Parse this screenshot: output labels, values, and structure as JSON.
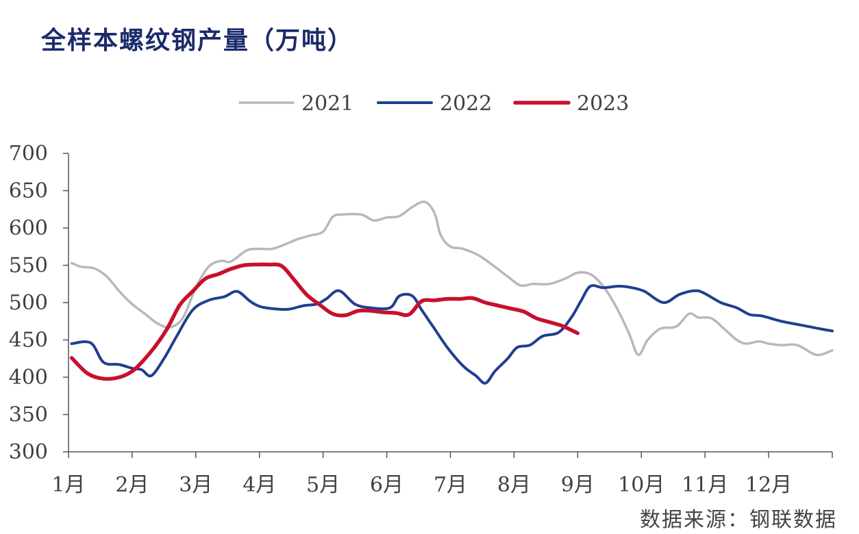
{
  "title": "全样本螺纹钢产量（万吨）",
  "source": "数据来源：钢联数据",
  "colors": {
    "2021": "#b8b8b8",
    "2022": "#1f3f8f",
    "2023": "#c8102e",
    "axis": "#555555"
  },
  "chart_data": {
    "type": "line",
    "title": "全样本螺纹钢产量（万吨）",
    "xlabel": "",
    "ylabel": "",
    "ylim": [
      300,
      700
    ],
    "yticks": [
      300,
      350,
      400,
      450,
      500,
      550,
      600,
      650,
      700
    ],
    "xlim": [
      1,
      13
    ],
    "xticks": [
      "1月",
      "2月",
      "3月",
      "4月",
      "5月",
      "6月",
      "7月",
      "8月",
      "9月",
      "10月",
      "11月",
      "12月"
    ],
    "grid": false,
    "legend": "top-center",
    "series": [
      {
        "name": "2021",
        "color": "#b8b8b8",
        "x": [
          1.05,
          1.2,
          1.4,
          1.6,
          1.8,
          2.0,
          2.2,
          2.4,
          2.6,
          2.8,
          3.0,
          3.2,
          3.4,
          3.55,
          3.8,
          4.0,
          4.2,
          4.4,
          4.6,
          4.8,
          5.0,
          5.15,
          5.3,
          5.6,
          5.8,
          6.0,
          6.2,
          6.4,
          6.6,
          6.75,
          6.85,
          7.0,
          7.2,
          7.45,
          7.7,
          7.9,
          8.1,
          8.3,
          8.55,
          8.8,
          9.0,
          9.2,
          9.4,
          9.6,
          9.8,
          9.95,
          10.1,
          10.3,
          10.55,
          10.75,
          10.9,
          11.1,
          11.3,
          11.5,
          11.65,
          11.85,
          12.0,
          12.2,
          12.45,
          12.75,
          13.0
        ],
        "values": [
          553,
          548,
          546,
          535,
          515,
          498,
          485,
          472,
          467,
          480,
          520,
          548,
          556,
          555,
          570,
          572,
          572,
          578,
          585,
          590,
          595,
          615,
          618,
          618,
          610,
          614,
          616,
          628,
          635,
          620,
          590,
          575,
          572,
          563,
          548,
          535,
          523,
          525,
          525,
          532,
          540,
          538,
          522,
          495,
          460,
          430,
          450,
          465,
          468,
          485,
          480,
          479,
          465,
          450,
          445,
          448,
          445,
          443,
          443,
          430,
          436
        ]
      },
      {
        "name": "2022",
        "color": "#1f3f8f",
        "x": [
          1.05,
          1.35,
          1.55,
          1.8,
          2.0,
          2.15,
          2.3,
          2.5,
          2.7,
          2.95,
          3.2,
          3.45,
          3.65,
          3.85,
          4.0,
          4.2,
          4.45,
          4.7,
          4.9,
          5.05,
          5.25,
          5.5,
          5.75,
          6.05,
          6.2,
          6.4,
          6.55,
          6.75,
          6.95,
          7.2,
          7.4,
          7.55,
          7.7,
          7.9,
          8.05,
          8.25,
          8.45,
          8.7,
          8.9,
          9.05,
          9.2,
          9.4,
          9.65,
          9.85,
          10.05,
          10.35,
          10.6,
          10.85,
          11.0,
          11.25,
          11.5,
          11.7,
          11.9,
          12.2,
          12.5,
          12.8,
          13.0
        ],
        "values": [
          445,
          446,
          420,
          417,
          412,
          410,
          402,
          425,
          455,
          490,
          503,
          508,
          515,
          502,
          495,
          492,
          491,
          496,
          498,
          505,
          516,
          498,
          493,
          493,
          509,
          509,
          490,
          465,
          440,
          415,
          402,
          392,
          408,
          425,
          440,
          443,
          455,
          460,
          480,
          502,
          522,
          520,
          522,
          520,
          515,
          500,
          511,
          516,
          512,
          500,
          493,
          484,
          482,
          475,
          470,
          465,
          462
        ]
      },
      {
        "name": "2023",
        "color": "#c8102e",
        "x": [
          1.05,
          1.3,
          1.55,
          1.8,
          2.0,
          2.15,
          2.35,
          2.55,
          2.75,
          2.95,
          3.15,
          3.35,
          3.55,
          3.75,
          3.95,
          4.15,
          4.35,
          4.55,
          4.75,
          4.95,
          5.15,
          5.35,
          5.55,
          5.75,
          5.95,
          6.15,
          6.35,
          6.55,
          6.75,
          6.95,
          7.15,
          7.35,
          7.55,
          7.75,
          7.95,
          8.15,
          8.35,
          8.55,
          8.75,
          9.0
        ],
        "values": [
          426,
          405,
          398,
          400,
          408,
          420,
          440,
          465,
          497,
          515,
          532,
          538,
          545,
          550,
          551,
          551,
          549,
          530,
          510,
          497,
          485,
          483,
          489,
          489,
          487,
          486,
          484,
          502,
          503,
          505,
          505,
          506,
          500,
          496,
          492,
          488,
          479,
          474,
          469,
          459
        ]
      }
    ]
  }
}
